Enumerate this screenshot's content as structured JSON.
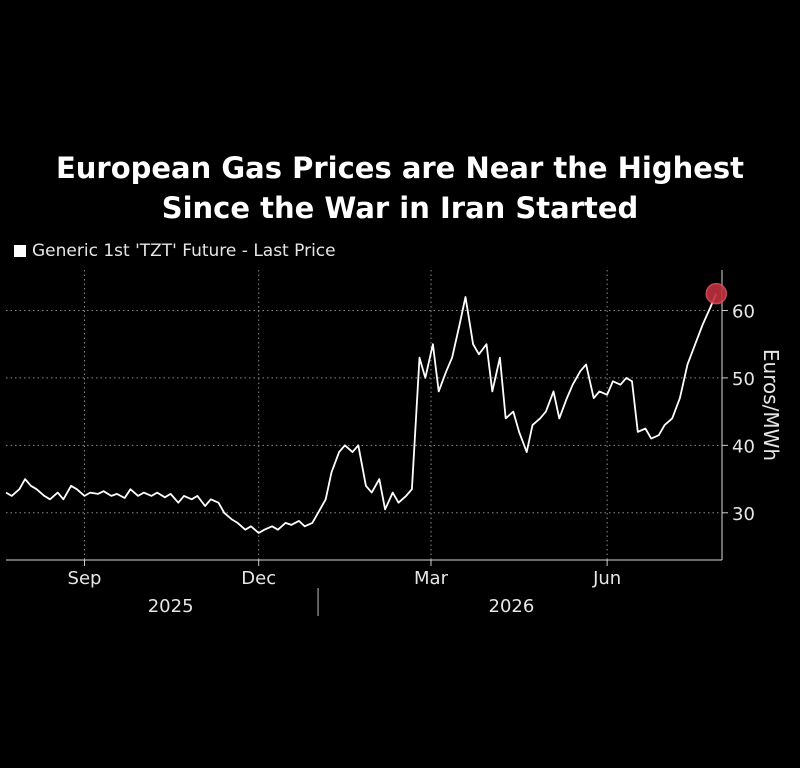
{
  "title_line1": "European Gas Prices are Near the Highest",
  "title_line2": "Since the War in Iran Started",
  "legend_label": "Generic 1st 'TZT' Future - Last Price",
  "colors": {
    "background": "#000000",
    "line": "#ffffff",
    "marker": "#c0303c"
  },
  "chart_data": {
    "type": "line",
    "title": "European Gas Prices are Near the Highest Since the War in Iran Started",
    "xlabel": "",
    "ylabel": "Euros/MWh",
    "ylim": [
      23,
      66
    ],
    "yticks": [
      30,
      40,
      50,
      60
    ],
    "xlim": [
      "2025-07-22",
      "2026-07-31"
    ],
    "xticks": [
      {
        "date": "2025-09-01",
        "label": "Sep"
      },
      {
        "date": "2025-12-01",
        "label": "Dec"
      },
      {
        "date": "2026-03-01",
        "label": "Mar"
      },
      {
        "date": "2026-06-01",
        "label": "Jun"
      }
    ],
    "year_labels": [
      {
        "date": "2025-10-16",
        "label": "2025"
      },
      {
        "date": "2026-04-12",
        "label": "2026"
      }
    ],
    "year_divider": "2026-01-01",
    "grid": true,
    "legend_position": "top-left",
    "series": [
      {
        "name": "Generic 1st 'TZT' Future - Last Price",
        "points": [
          [
            "2025-07-22",
            33
          ],
          [
            "2025-07-25",
            32.5
          ],
          [
            "2025-07-29",
            33.5
          ],
          [
            "2025-08-01",
            35
          ],
          [
            "2025-08-04",
            34
          ],
          [
            "2025-08-07",
            33.5
          ],
          [
            "2025-08-11",
            32.5
          ],
          [
            "2025-08-14",
            32
          ],
          [
            "2025-08-18",
            33
          ],
          [
            "2025-08-21",
            32
          ],
          [
            "2025-08-25",
            34
          ],
          [
            "2025-08-28",
            33.5
          ],
          [
            "2025-09-01",
            32.5
          ],
          [
            "2025-09-04",
            33
          ],
          [
            "2025-09-08",
            32.8
          ],
          [
            "2025-09-11",
            33.2
          ],
          [
            "2025-09-15",
            32.5
          ],
          [
            "2025-09-18",
            32.8
          ],
          [
            "2025-09-22",
            32.2
          ],
          [
            "2025-09-25",
            33.5
          ],
          [
            "2025-09-29",
            32.5
          ],
          [
            "2025-10-02",
            33
          ],
          [
            "2025-10-06",
            32.5
          ],
          [
            "2025-10-09",
            33
          ],
          [
            "2025-10-13",
            32.3
          ],
          [
            "2025-10-16",
            32.8
          ],
          [
            "2025-10-20",
            31.5
          ],
          [
            "2025-10-23",
            32.5
          ],
          [
            "2025-10-27",
            32
          ],
          [
            "2025-10-30",
            32.5
          ],
          [
            "2025-11-03",
            31
          ],
          [
            "2025-11-06",
            32
          ],
          [
            "2025-11-10",
            31.5
          ],
          [
            "2025-11-13",
            30
          ],
          [
            "2025-11-17",
            29
          ],
          [
            "2025-11-20",
            28.5
          ],
          [
            "2025-11-24",
            27.5
          ],
          [
            "2025-11-27",
            28
          ],
          [
            "2025-12-01",
            27
          ],
          [
            "2025-12-04",
            27.5
          ],
          [
            "2025-12-08",
            28
          ],
          [
            "2025-12-11",
            27.5
          ],
          [
            "2025-12-15",
            28.5
          ],
          [
            "2025-12-18",
            28.2
          ],
          [
            "2025-12-22",
            28.8
          ],
          [
            "2025-12-25",
            28
          ],
          [
            "2025-12-29",
            28.5
          ],
          [
            "2026-01-01",
            30
          ],
          [
            "2026-01-05",
            32
          ],
          [
            "2026-01-08",
            36
          ],
          [
            "2026-01-12",
            39
          ],
          [
            "2026-01-15",
            40
          ],
          [
            "2026-01-19",
            39
          ],
          [
            "2026-01-22",
            40
          ],
          [
            "2026-01-26",
            34
          ],
          [
            "2026-01-29",
            33
          ],
          [
            "2026-02-02",
            35
          ],
          [
            "2026-02-05",
            30.5
          ],
          [
            "2026-02-09",
            33
          ],
          [
            "2026-02-12",
            31.5
          ],
          [
            "2026-02-16",
            32.5
          ],
          [
            "2026-02-19",
            33.5
          ],
          [
            "2026-02-23",
            53
          ],
          [
            "2026-02-26",
            50
          ],
          [
            "2026-03-02",
            55
          ],
          [
            "2026-03-05",
            48
          ],
          [
            "2026-03-09",
            51
          ],
          [
            "2026-03-12",
            53
          ],
          [
            "2026-03-16",
            58
          ],
          [
            "2026-03-19",
            62
          ],
          [
            "2026-03-23",
            55
          ],
          [
            "2026-03-26",
            53.5
          ],
          [
            "2026-03-30",
            55
          ],
          [
            "2026-04-02",
            48
          ],
          [
            "2026-04-06",
            53
          ],
          [
            "2026-04-09",
            44
          ],
          [
            "2026-04-13",
            45
          ],
          [
            "2026-04-16",
            42
          ],
          [
            "2026-04-20",
            39
          ],
          [
            "2026-04-23",
            43
          ],
          [
            "2026-04-27",
            44
          ],
          [
            "2026-04-30",
            45
          ],
          [
            "2026-05-04",
            48
          ],
          [
            "2026-05-07",
            44
          ],
          [
            "2026-05-11",
            47
          ],
          [
            "2026-05-14",
            49
          ],
          [
            "2026-05-18",
            51
          ],
          [
            "2026-05-21",
            52
          ],
          [
            "2026-05-25",
            47
          ],
          [
            "2026-05-28",
            48
          ],
          [
            "2026-06-01",
            47.5
          ],
          [
            "2026-06-04",
            49.5
          ],
          [
            "2026-06-08",
            49
          ],
          [
            "2026-06-11",
            50
          ],
          [
            "2026-06-14",
            49.5
          ],
          [
            "2026-06-17",
            42
          ],
          [
            "2026-06-21",
            42.5
          ],
          [
            "2026-06-24",
            41
          ],
          [
            "2026-06-28",
            41.5
          ],
          [
            "2026-07-01",
            43
          ],
          [
            "2026-07-05",
            44
          ],
          [
            "2026-07-09",
            47
          ],
          [
            "2026-07-13",
            52
          ],
          [
            "2026-07-17",
            55
          ],
          [
            "2026-07-21",
            58
          ],
          [
            "2026-07-25",
            60.5
          ],
          [
            "2026-07-28",
            62.5
          ]
        ]
      }
    ],
    "highlight": {
      "date": "2026-07-28",
      "value": 62.5
    }
  }
}
